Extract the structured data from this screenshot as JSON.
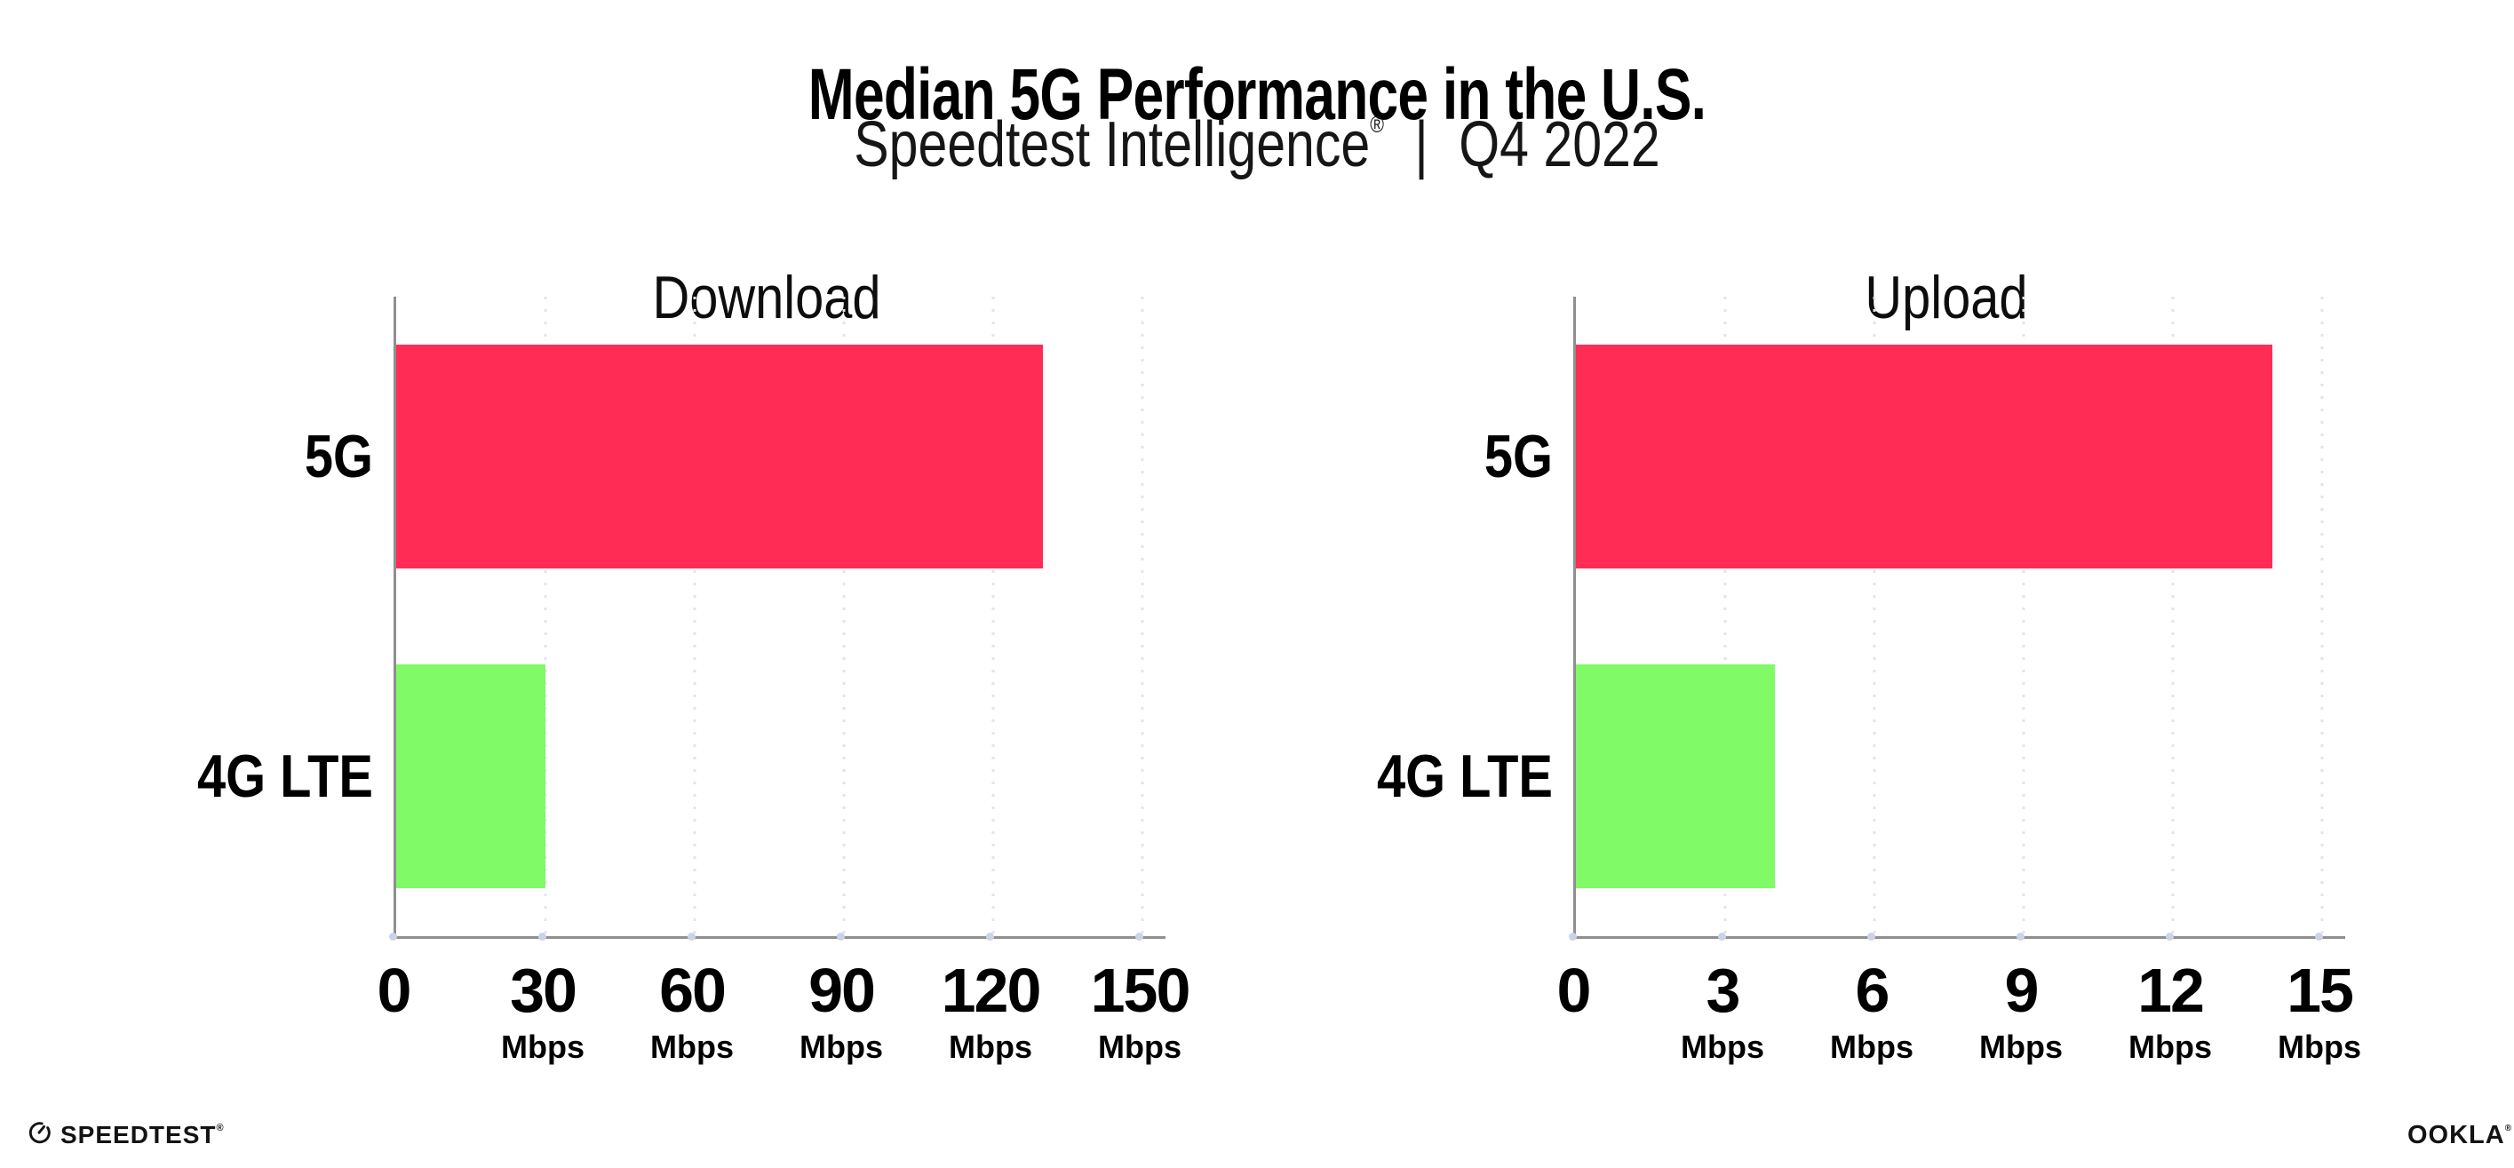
{
  "header": {
    "title": "Median 5G Performance in the U.S.",
    "subtitle_brand": "Speedtest Intelligence",
    "subtitle_reg": "®",
    "subtitle_separator": "|",
    "subtitle_period": "Q4 2022"
  },
  "chart_data": [
    {
      "type": "bar",
      "orientation": "horizontal",
      "title": "Download",
      "categories": [
        "5G",
        "4G LTE"
      ],
      "values": [
        130,
        30
      ],
      "unit": "Mbps",
      "xlabel": "",
      "xlim": [
        0,
        150
      ],
      "ticks": [
        0,
        30,
        60,
        90,
        120,
        150
      ],
      "tick_suffix": "Mbps",
      "bar_colors": [
        "#ff2d55",
        "#80fa66"
      ],
      "grid": "dotted-vertical",
      "legend": "none"
    },
    {
      "type": "bar",
      "orientation": "horizontal",
      "title": "Upload",
      "categories": [
        "5G",
        "4G LTE"
      ],
      "values": [
        14,
        4
      ],
      "unit": "Mbps",
      "xlabel": "",
      "xlim": [
        0,
        15
      ],
      "ticks": [
        0,
        3,
        6,
        9,
        12,
        15
      ],
      "tick_suffix": "Mbps",
      "bar_colors": [
        "#ff2d55",
        "#80fa66"
      ],
      "grid": "dotted-vertical",
      "legend": "none"
    }
  ],
  "footer": {
    "speedtest_logo_text": "SPEEDTEST",
    "speedtest_reg": "®",
    "ookla_logo_text": "OOKLA",
    "ookla_reg": "®"
  },
  "colors": {
    "background": "#ffffff",
    "bar_5g": "#ff2d55",
    "bar_4g_lte": "#80fa66",
    "axis": "#8f8f8f",
    "gridline": "#e3e3ef",
    "axis_tick_dot": "#cdd3e6",
    "text": "#000000"
  }
}
